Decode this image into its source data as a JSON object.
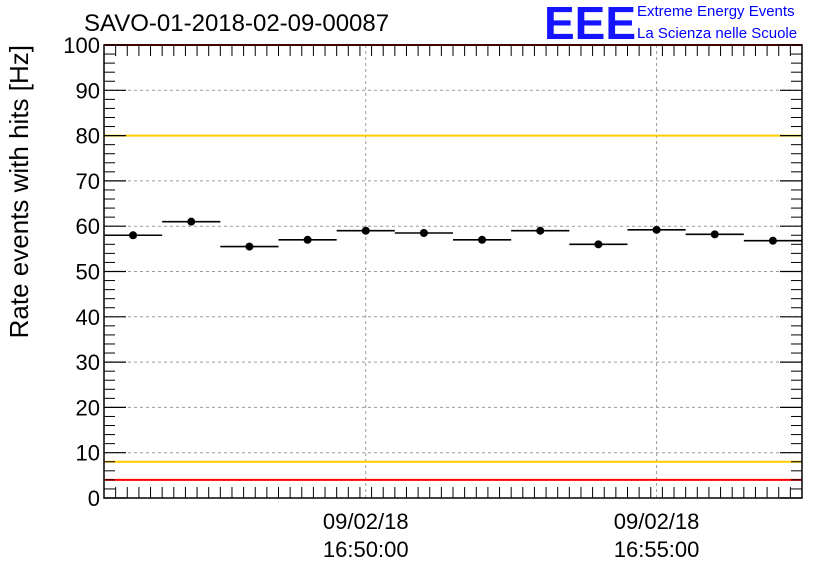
{
  "chart_data": {
    "type": "scatter",
    "title": "SAVO-01-2018-02-09-00087",
    "ylabel": "Rate events with hits [Hz]",
    "xlabel": "",
    "ylim": [
      0,
      100
    ],
    "yticks": [
      "0",
      "10",
      "20",
      "30",
      "40",
      "50",
      "60",
      "70",
      "80",
      "90",
      "100"
    ],
    "x_time_range_min": [
      0,
      12
    ],
    "xtick_labels": [
      {
        "date": "09/02/18",
        "time": "16:50:00",
        "t_min": 4.5
      },
      {
        "date": "09/02/18",
        "time": "16:55:00",
        "t_min": 9.5
      }
    ],
    "bin_width_min": 1.0,
    "series": [
      {
        "name": "rate",
        "x_min": [
          0.5,
          1.5,
          2.5,
          3.5,
          4.5,
          5.5,
          6.5,
          7.5,
          8.5,
          9.5,
          10.5,
          11.5
        ],
        "values": [
          58,
          61,
          55.5,
          57,
          59,
          58.5,
          57,
          59,
          56,
          59.2,
          58.2,
          56.8
        ]
      }
    ],
    "reference_lines": [
      {
        "name": "upper-red",
        "value": 100,
        "color": "#ff0000"
      },
      {
        "name": "upper-yellow",
        "value": 80,
        "color": "#ffcc00"
      },
      {
        "name": "lower-yellow",
        "value": 8,
        "color": "#ffcc00"
      },
      {
        "name": "lower-red",
        "value": 4,
        "color": "#ff0000"
      }
    ],
    "grid": true
  },
  "logo": {
    "letters": "EEE",
    "line1": "Extreme Energy Events",
    "line2": "La Scienza nelle Scuole"
  }
}
